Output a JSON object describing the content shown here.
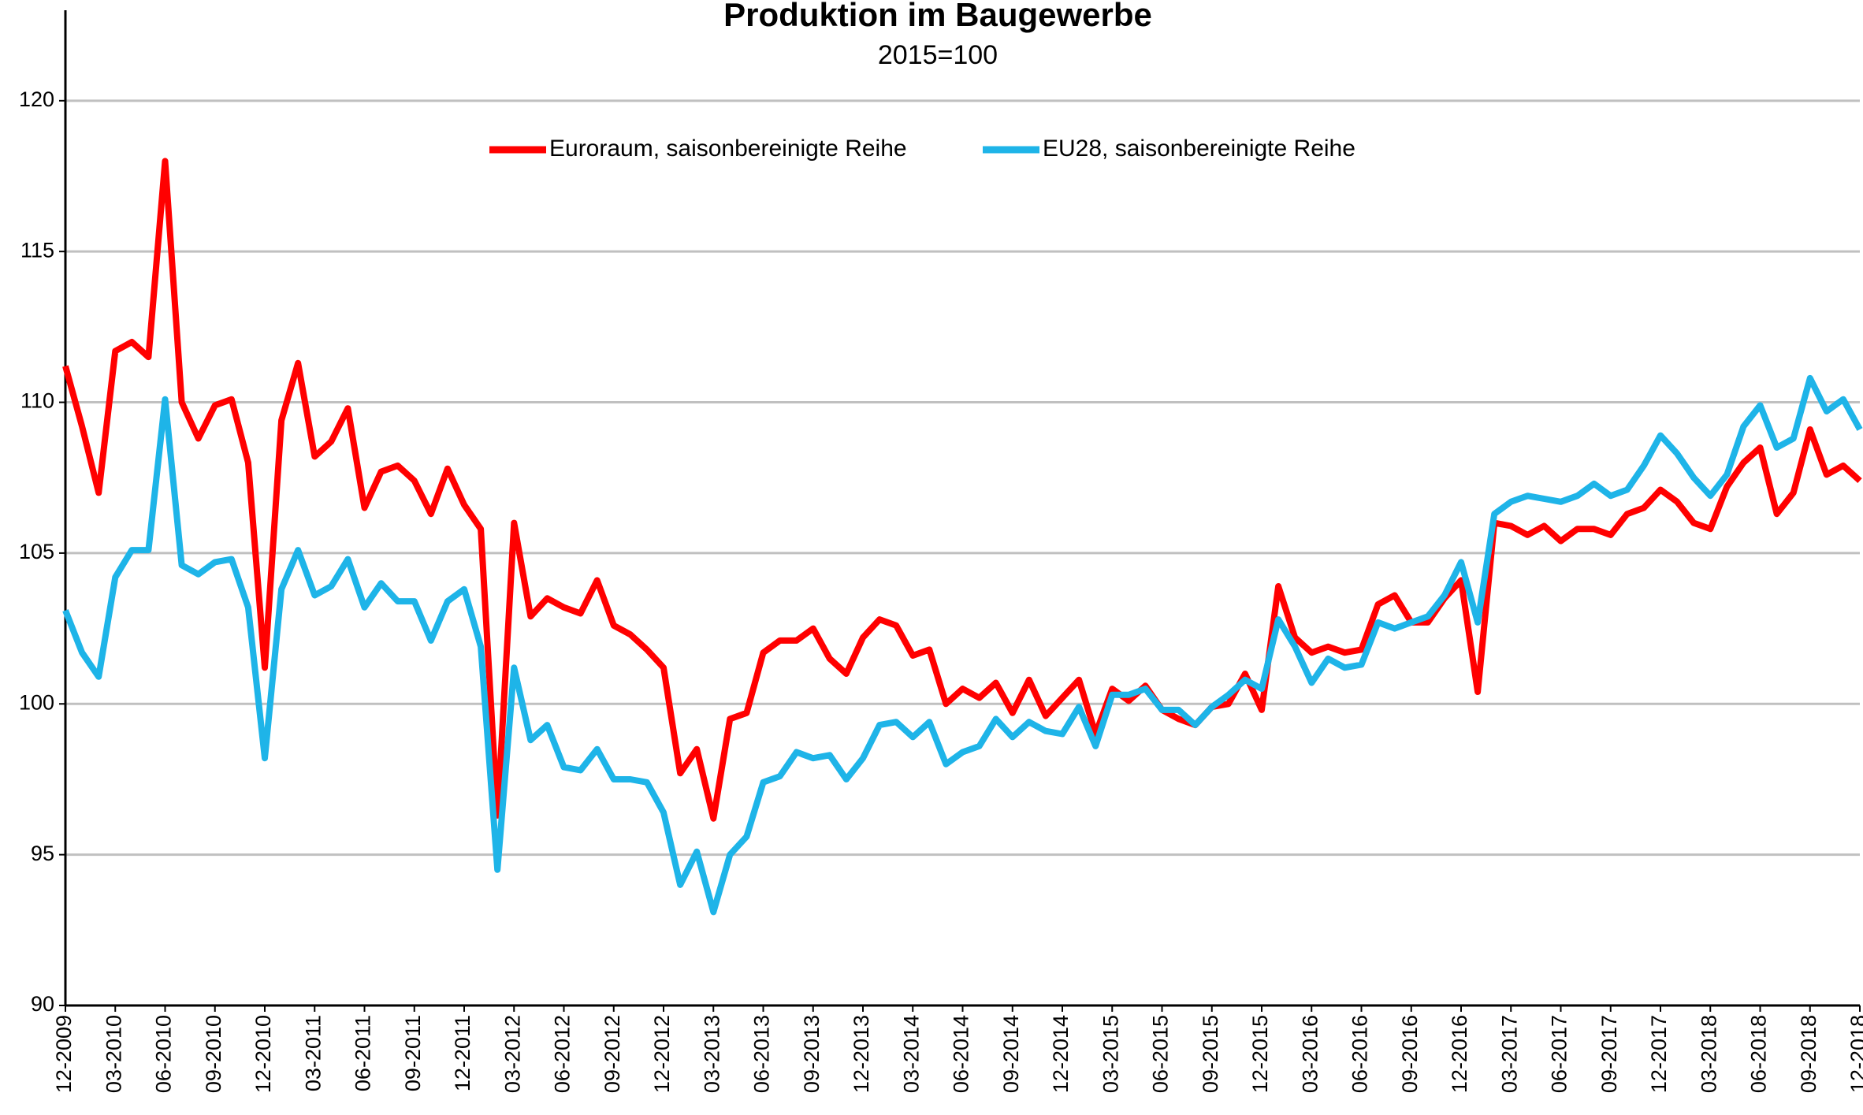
{
  "chart_data": {
    "type": "line",
    "title": "Produktion im Baugewerbe",
    "subtitle": "2015=100",
    "categories": [
      "12-2009",
      null,
      null,
      "03-2010",
      null,
      null,
      "06-2010",
      null,
      null,
      "09-2010",
      null,
      null,
      "12-2010",
      null,
      null,
      "03-2011",
      null,
      null,
      "06-2011",
      null,
      null,
      "09-2011",
      null,
      null,
      "12-2011",
      null,
      null,
      "03-2012",
      null,
      null,
      "06-2012",
      null,
      null,
      "09-2012",
      null,
      null,
      "12-2012",
      null,
      null,
      "03-2013",
      null,
      null,
      "06-2013",
      null,
      null,
      "09-2013",
      null,
      null,
      "12-2013",
      null,
      null,
      "03-2014",
      null,
      null,
      "06-2014",
      null,
      null,
      "09-2014",
      null,
      null,
      "12-2014",
      null,
      null,
      "03-2015",
      null,
      null,
      "06-2015",
      null,
      null,
      "09-2015",
      null,
      null,
      "12-2015",
      null,
      null,
      "03-2016",
      null,
      null,
      "06-2016",
      null,
      null,
      "09-2016",
      null,
      null,
      "12-2016",
      null,
      null,
      "03-2017",
      null,
      null,
      "06-2017",
      null,
      null,
      "09-2017",
      null,
      null,
      "12-2017",
      null,
      null,
      "03-2018",
      null,
      null,
      "06-2018",
      null,
      null,
      "09-2018",
      null,
      null,
      "12-2018"
    ],
    "series": [
      {
        "name": "Euroraum, saisonbereinigte Reihe",
        "color": "#ff0000",
        "values": [
          111.2,
          109.2,
          107.0,
          111.7,
          112.0,
          111.5,
          118.0,
          110.0,
          108.8,
          109.9,
          110.1,
          108.0,
          101.2,
          109.4,
          111.3,
          108.2,
          108.7,
          109.8,
          106.5,
          107.7,
          107.9,
          107.4,
          106.3,
          107.8,
          106.6,
          105.8,
          96.3,
          106.0,
          102.9,
          103.5,
          103.2,
          103.0,
          104.1,
          102.6,
          102.3,
          101.8,
          101.2,
          97.7,
          98.5,
          96.2,
          99.5,
          99.7,
          101.7,
          102.1,
          102.1,
          102.5,
          101.5,
          101.0,
          102.2,
          102.8,
          102.6,
          101.6,
          101.8,
          100.0,
          100.5,
          100.2,
          100.7,
          99.7,
          100.8,
          99.6,
          100.2,
          100.8,
          99.0,
          100.5,
          100.1,
          100.6,
          99.8,
          99.5,
          99.3,
          99.9,
          100.0,
          101.0,
          99.8,
          103.9,
          102.2,
          101.7,
          101.9,
          101.7,
          101.8,
          103.3,
          103.6,
          102.7,
          102.7,
          103.5,
          104.1,
          100.4,
          106.0,
          105.9,
          105.6,
          105.9,
          105.4,
          105.8,
          105.8,
          105.6,
          106.3,
          106.5,
          107.1,
          106.7,
          106.0,
          105.8,
          107.2,
          108.0,
          108.5,
          106.3,
          107.0,
          109.1,
          107.6,
          107.9,
          107.4
        ]
      },
      {
        "name": "EU28, saisonbereinigte Reihe",
        "color": "#1eb4e8",
        "values": [
          103.1,
          101.7,
          100.9,
          104.2,
          105.1,
          105.1,
          110.1,
          104.6,
          104.3,
          104.7,
          104.8,
          103.2,
          98.2,
          103.8,
          105.1,
          103.6,
          103.9,
          104.8,
          103.2,
          104.0,
          103.4,
          103.4,
          102.1,
          103.4,
          103.8,
          101.9,
          94.5,
          101.2,
          98.8,
          99.3,
          97.9,
          97.8,
          98.5,
          97.5,
          97.5,
          97.4,
          96.4,
          94.0,
          95.1,
          93.1,
          95.0,
          95.6,
          97.4,
          97.6,
          98.4,
          98.2,
          98.3,
          97.5,
          98.2,
          99.3,
          99.4,
          98.9,
          99.4,
          98.0,
          98.4,
          98.6,
          99.5,
          98.9,
          99.4,
          99.1,
          99.0,
          99.9,
          98.6,
          100.3,
          100.3,
          100.5,
          99.8,
          99.8,
          99.3,
          99.9,
          100.3,
          100.8,
          100.5,
          102.8,
          101.9,
          100.7,
          101.5,
          101.2,
          101.3,
          102.7,
          102.5,
          102.7,
          102.9,
          103.6,
          104.7,
          102.7,
          106.3,
          106.7,
          106.9,
          106.8,
          106.7,
          106.9,
          107.3,
          106.9,
          107.1,
          107.9,
          108.9,
          108.3,
          107.5,
          106.9,
          107.6,
          109.2,
          109.9,
          108.5,
          108.8,
          110.8,
          109.7,
          110.1,
          109.1
        ]
      }
    ],
    "ylim": [
      90,
      123
    ],
    "yticks": [
      90,
      95,
      100,
      105,
      110,
      115,
      120
    ],
    "grid": true
  }
}
